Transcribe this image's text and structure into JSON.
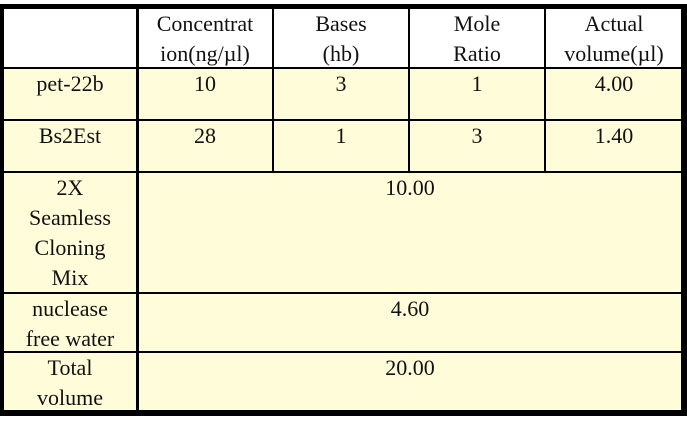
{
  "table": {
    "header": [
      [
        "Concentrat",
        "ion(ng/µl)"
      ],
      [
        "Bases",
        "(hb)"
      ],
      [
        "Mole",
        "Ratio"
      ],
      [
        "Actual",
        "volume(µl)"
      ]
    ],
    "rows": [
      {
        "label": [
          "pet-22b"
        ],
        "cells": [
          "10",
          "3",
          "1",
          "4.00"
        ]
      },
      {
        "label": [
          "Bs2Est"
        ],
        "cells": [
          "28",
          "1",
          "3",
          "1.40"
        ]
      },
      {
        "label": [
          "2X",
          "Seamless",
          "Cloning",
          "Mix"
        ],
        "volume": "10.00"
      },
      {
        "label": [
          "nuclease",
          "free water"
        ],
        "volume": "4.60"
      },
      {
        "label": [
          "Total",
          "volume"
        ],
        "volume": "20.00"
      }
    ]
  }
}
